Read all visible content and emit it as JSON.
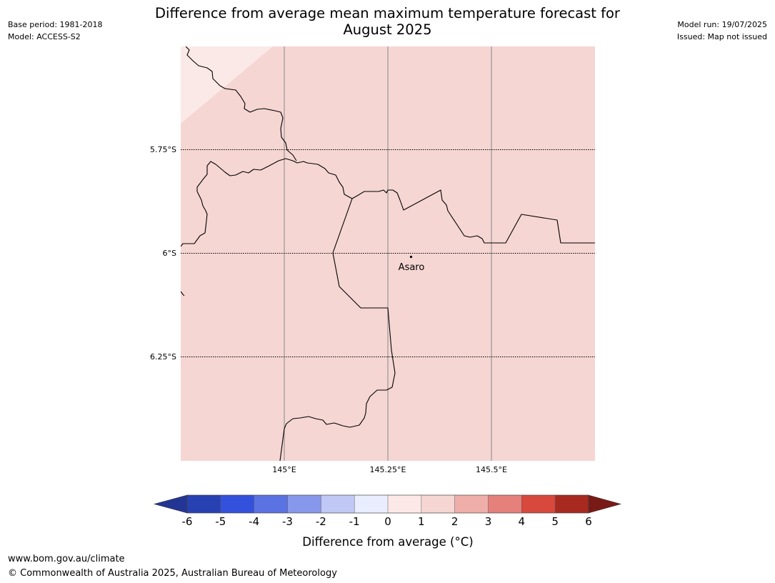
{
  "header": {
    "title_line1": "Difference from average mean maximum temperature forecast for",
    "title_line2": "August 2025",
    "base_period": "Base period: 1981-2018",
    "model": "Model: ACCESS-S2",
    "model_run": "Model run: 19/07/2025",
    "issued": "Issued: Map not issued"
  },
  "map": {
    "latitude_labels": [
      "5.75°S",
      "6°S",
      "6.25°S"
    ],
    "longitude_labels": [
      "145°E",
      "145.25°E",
      "145.5°E"
    ],
    "place_name": "Asaro",
    "fill_colors": {
      "main": "#f5d6d3",
      "corner": "#fbe9e7"
    }
  },
  "legend": {
    "title": "Difference from average (°C)",
    "ticks": [
      "-6",
      "-5",
      "-4",
      "-3",
      "-2",
      "-1",
      "0",
      "1",
      "2",
      "3",
      "4",
      "5",
      "6"
    ],
    "colors": [
      "#233594",
      "#2741b3",
      "#3451dd",
      "#5b72e3",
      "#8797ec",
      "#c0c8f6",
      "#eaedfd",
      "#fce9e7",
      "#f5d6d3",
      "#efaeaa",
      "#e6807a",
      "#d8483c",
      "#a82920",
      "#7a1a16"
    ]
  },
  "footer": {
    "url": "www.bom.gov.au/climate",
    "copyright": "© Commonwealth of Australia 2025, Australian Bureau of Meteorology"
  }
}
